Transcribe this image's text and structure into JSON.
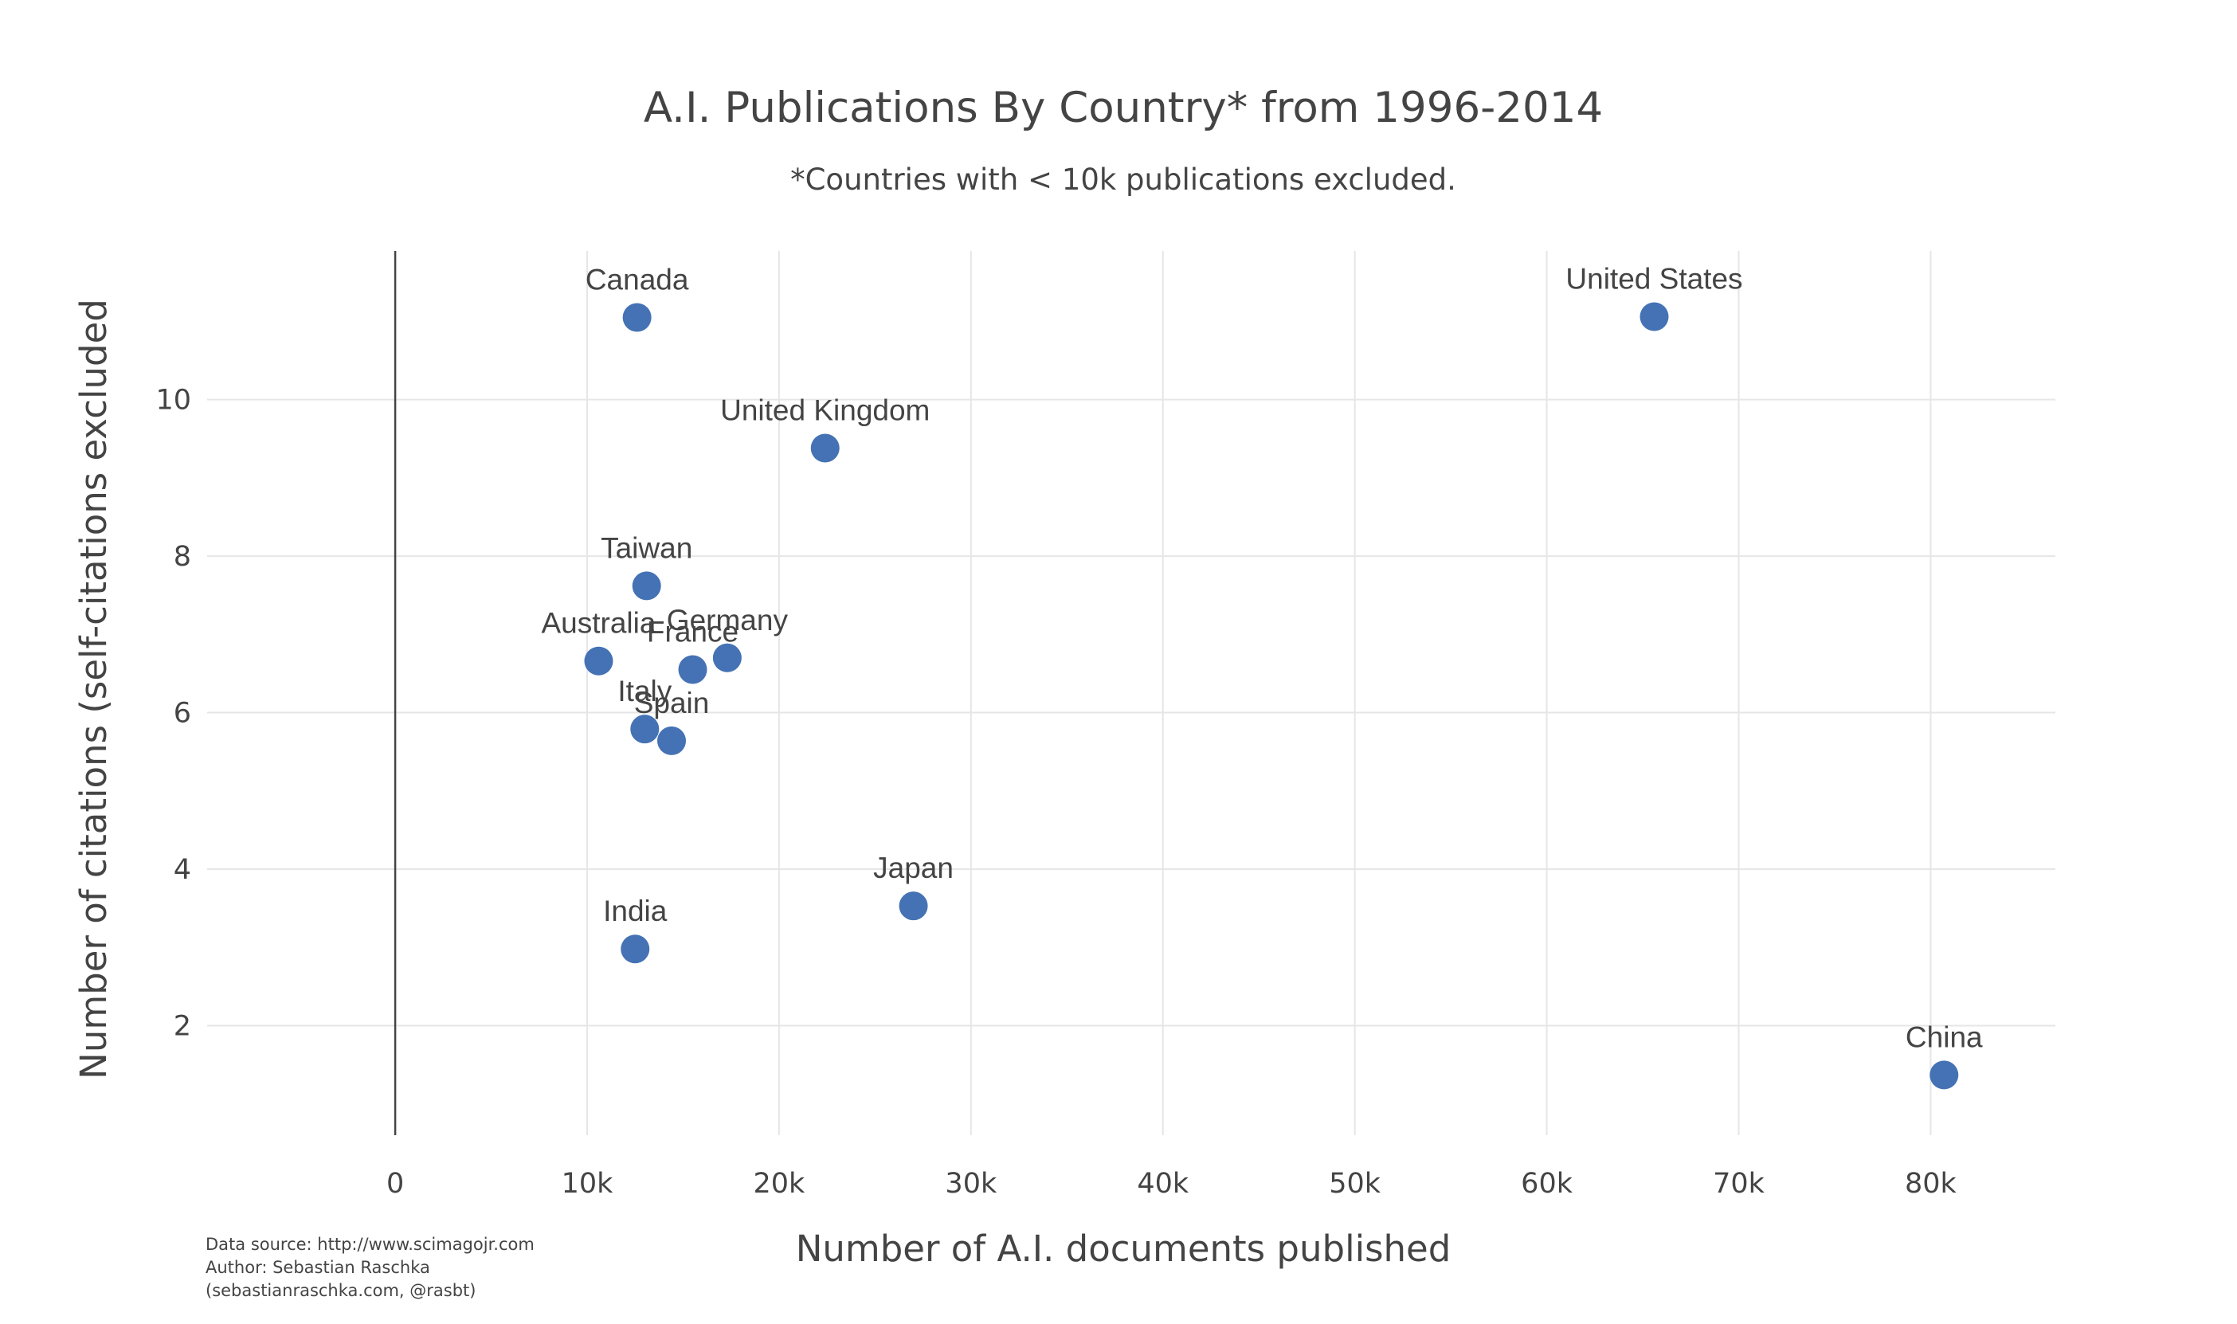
{
  "chart_data": {
    "type": "scatter",
    "title": "A.I. Publications By Country* from 1996-2014",
    "subtitle": "*Countries with < 10k publications excluded.",
    "xlabel": "Number of A.I. documents published",
    "ylabel": "Number of citations (self-citations excluded",
    "xlim": [
      -9800,
      86500
    ],
    "ylim": [
      0.6,
      11.9
    ],
    "x_ticks": [
      0,
      10000,
      20000,
      30000,
      40000,
      50000,
      60000,
      70000,
      80000
    ],
    "x_tick_labels": [
      "0",
      "10k",
      "20k",
      "30k",
      "40k",
      "50k",
      "60k",
      "70k",
      "80k"
    ],
    "y_ticks": [
      2,
      4,
      6,
      8,
      10
    ],
    "y_tick_labels": [
      "2",
      "4",
      "6",
      "8",
      "10"
    ],
    "grid": true,
    "marker_color": "#4472b4",
    "points": [
      {
        "label": "Canada",
        "x": 12600,
        "y": 11.05
      },
      {
        "label": "United States",
        "x": 65600,
        "y": 11.06
      },
      {
        "label": "United Kingdom",
        "x": 22400,
        "y": 9.38
      },
      {
        "label": "Taiwan",
        "x": 13100,
        "y": 7.62
      },
      {
        "label": "Australia",
        "x": 10600,
        "y": 6.66
      },
      {
        "label": "Germany",
        "x": 17300,
        "y": 6.7
      },
      {
        "label": "France",
        "x": 15500,
        "y": 6.55
      },
      {
        "label": "Italy",
        "x": 13000,
        "y": 5.79
      },
      {
        "label": "Spain",
        "x": 14400,
        "y": 5.64
      },
      {
        "label": "Japan",
        "x": 27000,
        "y": 3.53
      },
      {
        "label": "India",
        "x": 12500,
        "y": 2.98
      },
      {
        "label": "China",
        "x": 80700,
        "y": 1.37
      }
    ]
  },
  "footer": {
    "lines": [
      "Data source: http://www.scimagojr.com",
      "Author: Sebastian Raschka",
      "(sebastianraschka.com, @rasbt)"
    ]
  }
}
